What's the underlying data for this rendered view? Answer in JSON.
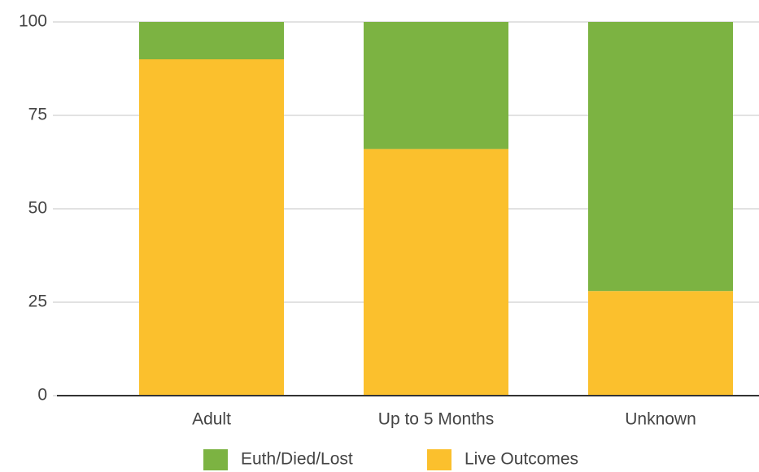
{
  "chart_data": {
    "type": "stacked_bar",
    "categories": [
      "Adult",
      "Up to 5 Months",
      "Unknown"
    ],
    "series": [
      {
        "name": "Euth/Died/Lost",
        "color": "#7cb342",
        "values": [
          10,
          34,
          72
        ]
      },
      {
        "name": "Live Outcomes",
        "color": "#fbc02d",
        "values": [
          90,
          66,
          28
        ]
      }
    ],
    "ylim": [
      0,
      100
    ],
    "yticks": [
      0,
      25,
      50,
      75,
      100
    ],
    "grid": true,
    "legend": "bottom"
  }
}
